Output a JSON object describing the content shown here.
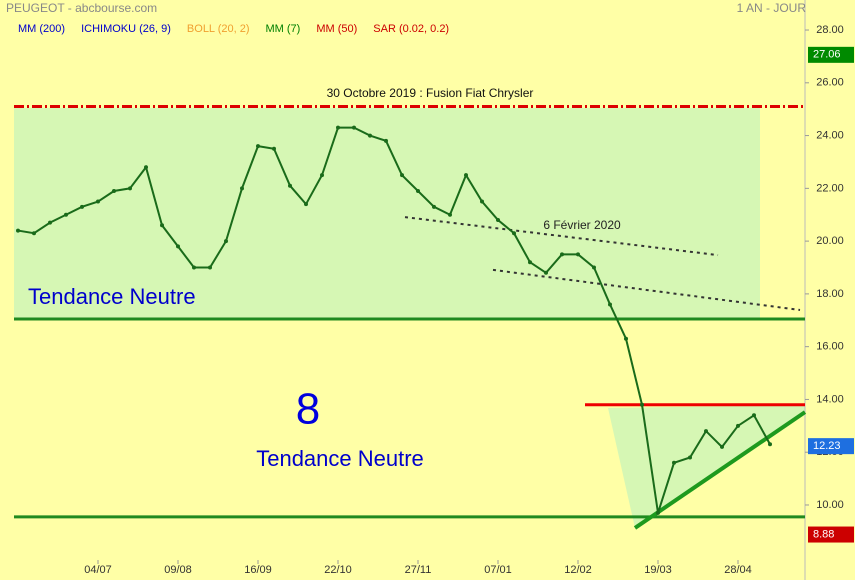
{
  "chart_data": {
    "type": "line",
    "title": "PEUGEOT - abcbourse.com",
    "period": "1 AN - JOUR",
    "indicators": [
      {
        "name": "MM (200)",
        "color": "#0000cc"
      },
      {
        "name": "ICHIMOKU (26, 9)",
        "color": "#0000cc"
      },
      {
        "name": "BOLL (20, 2)",
        "color": "#f0a030"
      },
      {
        "name": "MM (7)",
        "color": "#008000"
      },
      {
        "name": "MM (50)",
        "color": "#cc0000"
      },
      {
        "name": "SAR (0.02, 0.2)",
        "color": "#cc0000"
      }
    ],
    "categories": [
      null,
      null,
      null,
      null,
      null,
      "04/07",
      null,
      null,
      null,
      null,
      "09/08",
      null,
      null,
      null,
      null,
      "16/09",
      null,
      null,
      null,
      null,
      "22/10",
      null,
      null,
      null,
      null,
      "27/11",
      null,
      null,
      null,
      null,
      "07/01",
      null,
      null,
      null,
      null,
      "12/02",
      null,
      null,
      null,
      null,
      "19/03",
      null,
      null,
      null,
      null,
      "28/04",
      null,
      null
    ],
    "series": [
      {
        "name": "PEUGEOT",
        "color": "#1a6b1a",
        "values": [
          20.4,
          20.3,
          20.7,
          21.0,
          21.3,
          21.5,
          21.9,
          22.0,
          22.8,
          20.6,
          19.8,
          19.0,
          19.0,
          20.0,
          22.0,
          23.6,
          23.5,
          22.1,
          21.4,
          22.5,
          24.3,
          24.3,
          24.0,
          23.8,
          22.5,
          21.9,
          21.3,
          21.0,
          22.5,
          21.5,
          20.8,
          20.3,
          19.2,
          18.8,
          19.5,
          19.5,
          19.0,
          17.6,
          16.3,
          13.8,
          9.7,
          11.6,
          11.8,
          12.8,
          12.2,
          13.0,
          13.4,
          12.3
        ]
      }
    ],
    "ylim": [
      8.4,
      28.6
    ],
    "yticks": [
      {
        "value": 10,
        "label": "10.00"
      },
      {
        "value": 12,
        "label": "12.00"
      },
      {
        "value": 14,
        "label": "14.00"
      },
      {
        "value": 16,
        "label": "16.00"
      },
      {
        "value": 18,
        "label": "18.00"
      },
      {
        "value": 20,
        "label": "20.00"
      },
      {
        "value": 22,
        "label": "22.00"
      },
      {
        "value": 24,
        "label": "24.00"
      },
      {
        "value": 26,
        "label": "26.00"
      },
      {
        "value": 28,
        "label": "28.00"
      }
    ],
    "levels": [
      {
        "value": 25.1,
        "color": "#dd0000",
        "style": "dashdot"
      },
      {
        "value": 17.05,
        "color": "#208a20",
        "style": "solid"
      },
      {
        "value": 9.55,
        "color": "#208a20",
        "style": "solid"
      },
      {
        "value": 13.8,
        "color": "#ee0000",
        "style": "short"
      }
    ],
    "trendlines": [
      {
        "values": [
          20.91,
          19.47
        ],
        "color": "#333333",
        "style": "dotted"
      },
      {
        "values": [
          18.91,
          17.39
        ],
        "color": "#333333",
        "style": "dotted"
      },
      {
        "values": [
          9.13,
          13.52
        ],
        "color": "#1e9a1e",
        "style": "solid"
      }
    ],
    "price_tags": [
      {
        "value": 27.06,
        "color": "#008a00"
      },
      {
        "value": 12.23,
        "color": "#1e6fe0"
      },
      {
        "value": 8.88,
        "color": "#cc0000"
      }
    ],
    "annotations": [
      "30 Octobre 2019 : Fusion Fiat Chrysler",
      "6 Février 2020",
      "Tendance Neutre",
      "8",
      "Tendance Neutre"
    ]
  }
}
